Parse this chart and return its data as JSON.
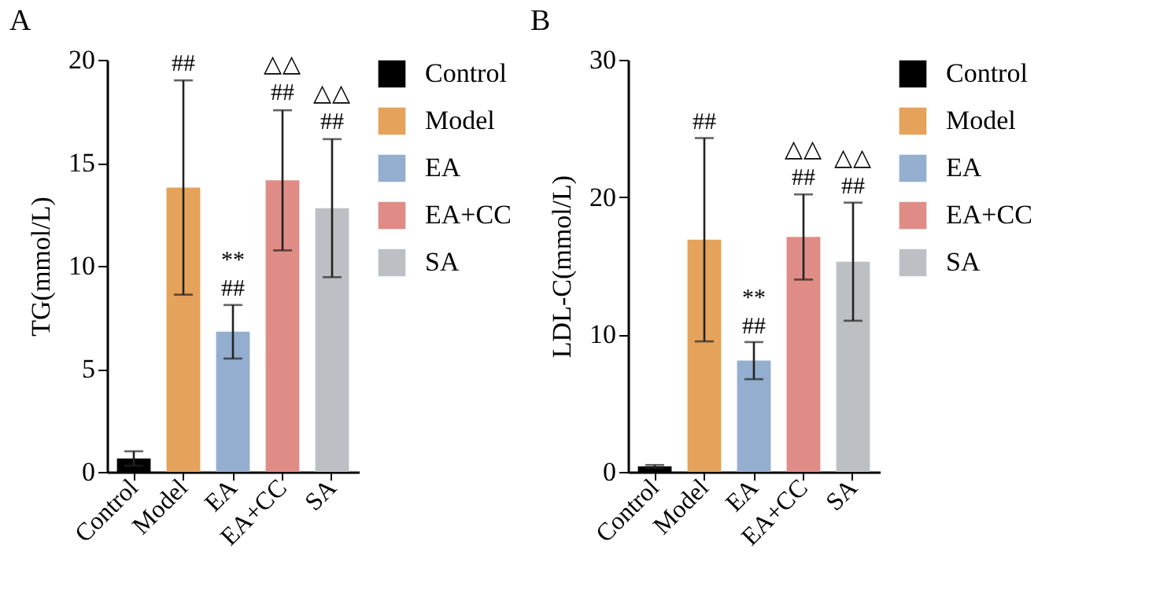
{
  "chart_data": [
    {
      "type": "bar",
      "title": "A",
      "ylabel": "TG(mmol/L)",
      "categories": [
        "Control",
        "Model",
        "EA",
        "EA+CC",
        "SA"
      ],
      "series": [
        {
          "name": "Control",
          "color": "#000000",
          "values": [
            0.65,
            null,
            null,
            null,
            null
          ],
          "errors": [
            0.35,
            null,
            null,
            null,
            null
          ]
        },
        {
          "name": "Model",
          "color": "#e5a25a",
          "values": [
            null,
            13.8,
            null,
            null,
            null
          ],
          "errors": [
            null,
            5.2,
            null,
            null,
            null
          ]
        },
        {
          "name": "EA",
          "color": "#94aecf",
          "values": [
            null,
            null,
            6.8,
            null,
            null
          ],
          "errors": [
            null,
            null,
            1.3,
            null,
            null
          ]
        },
        {
          "name": "EA+CC",
          "color": "#e08c86",
          "values": [
            null,
            null,
            null,
            14.15,
            null
          ],
          "errors": [
            null,
            null,
            null,
            3.4,
            null
          ]
        },
        {
          "name": "SA",
          "color": "#bcc0c4",
          "values": [
            null,
            null,
            null,
            null,
            12.8
          ],
          "errors": [
            null,
            null,
            null,
            null,
            3.35
          ]
        }
      ],
      "ylim": [
        0,
        20
      ],
      "yticks": [
        0,
        5,
        10,
        15,
        20
      ],
      "grid": false,
      "legend": "right",
      "annotations": [
        {
          "text": "##",
          "x": "Model",
          "y": 19.0
        },
        {
          "text": "##",
          "x": "EA",
          "y": 8.1
        },
        {
          "text": "**",
          "x": "EA",
          "y": 8.1
        },
        {
          "text": "##",
          "x": "EA+CC",
          "y": 17.6
        },
        {
          "text": "△△",
          "x": "EA+CC",
          "y": 17.6
        },
        {
          "text": "##",
          "x": "SA",
          "y": 16.2
        },
        {
          "text": "△△",
          "x": "SA",
          "y": 16.2
        }
      ]
    },
    {
      "type": "bar",
      "title": "B",
      "ylabel": "LDL-C(mmol/L)",
      "categories": [
        "Control",
        "Model",
        "EA",
        "EA+CC",
        "SA"
      ],
      "series": [
        {
          "name": "Control",
          "color": "#000000",
          "values": [
            0.4,
            null,
            null,
            null,
            null
          ],
          "errors": [
            0.1,
            null,
            null,
            null,
            null
          ]
        },
        {
          "name": "Model",
          "color": "#e5a25a",
          "values": [
            null,
            16.9,
            null,
            null,
            null
          ],
          "errors": [
            null,
            7.4,
            null,
            null,
            null
          ]
        },
        {
          "name": "EA",
          "color": "#94aecf",
          "values": [
            null,
            null,
            8.1,
            null,
            null
          ],
          "errors": [
            null,
            null,
            1.35,
            null,
            null
          ]
        },
        {
          "name": "EA+CC",
          "color": "#e08c86",
          "values": [
            null,
            null,
            null,
            17.1,
            null
          ],
          "errors": [
            null,
            null,
            null,
            3.1,
            null
          ]
        },
        {
          "name": "SA",
          "color": "#bcc0c4",
          "values": [
            null,
            null,
            null,
            null,
            15.3
          ],
          "errors": [
            null,
            null,
            null,
            null,
            4.3
          ]
        }
      ],
      "ylim": [
        0,
        30
      ],
      "yticks": [
        0,
        10,
        20,
        30
      ],
      "grid": false,
      "legend": "right",
      "annotations": [
        {
          "text": "##",
          "x": "Model",
          "y": 24.3
        },
        {
          "text": "##",
          "x": "EA",
          "y": 9.4
        },
        {
          "text": "**",
          "x": "EA",
          "y": 9.4
        },
        {
          "text": "##",
          "x": "EA+CC",
          "y": 20.2
        },
        {
          "text": "△△",
          "x": "EA+CC",
          "y": 20.2
        },
        {
          "text": "##",
          "x": "SA",
          "y": 19.6
        },
        {
          "text": "△△",
          "x": "SA",
          "y": 19.6
        }
      ]
    }
  ]
}
